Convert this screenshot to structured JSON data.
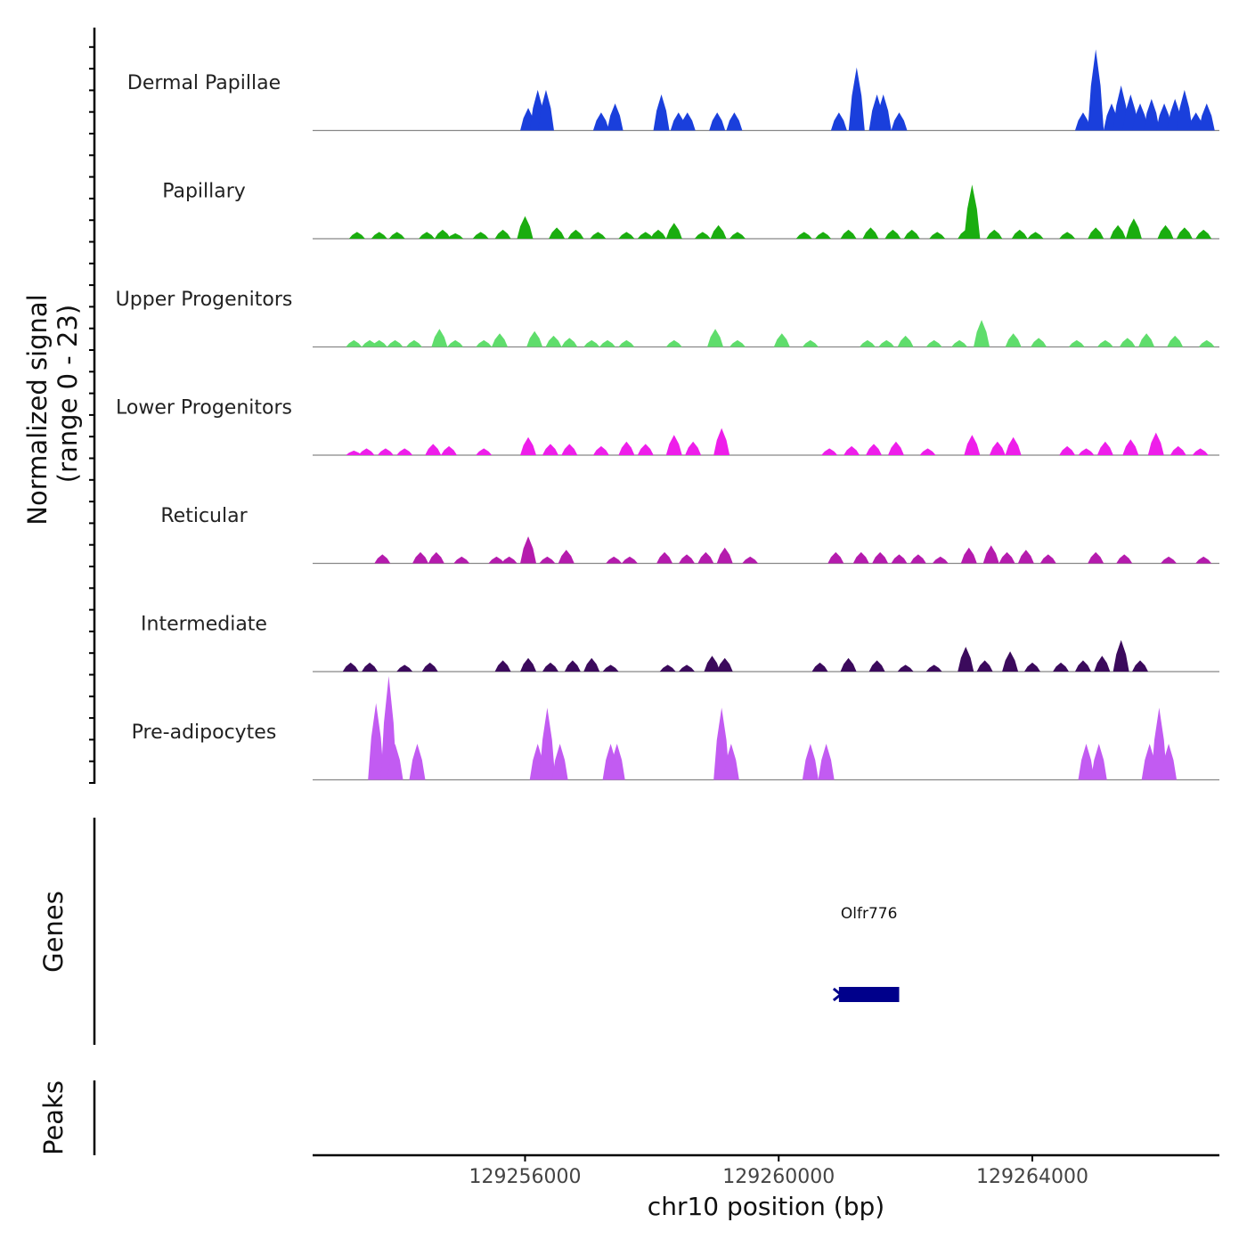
{
  "chart_data": {
    "type": "area",
    "title": "",
    "chromosome": "chr10",
    "xlabel": "chr10 position (bp)",
    "ylabel": "Normalized signal",
    "ylabel_range": "(range 0 - 23)",
    "ylim": [
      0,
      23
    ],
    "xlim": [
      129252650,
      129266950
    ],
    "x_ticks": [
      129256000,
      129260000,
      129264000
    ],
    "x_tick_labels": [
      "129256000",
      "129260000",
      "129264000"
    ],
    "tracks": [
      {
        "name": "Dermal Papillae",
        "color": "#1a3fdc",
        "peaks": [
          [
            129256050,
            5
          ],
          [
            129256200,
            9
          ],
          [
            129256330,
            9
          ],
          [
            129257200,
            4
          ],
          [
            129257420,
            6
          ],
          [
            129258150,
            8
          ],
          [
            129258420,
            4
          ],
          [
            129258560,
            4
          ],
          [
            129259030,
            4
          ],
          [
            129259300,
            4
          ],
          [
            129260950,
            4
          ],
          [
            129261230,
            14
          ],
          [
            129261550,
            8
          ],
          [
            129261650,
            8
          ],
          [
            129261900,
            4
          ],
          [
            129264800,
            4
          ],
          [
            129265000,
            18
          ],
          [
            129265250,
            6
          ],
          [
            129265400,
            10
          ],
          [
            129265550,
            8
          ],
          [
            129265700,
            6
          ],
          [
            129265880,
            7
          ],
          [
            129266080,
            6
          ],
          [
            129266250,
            7
          ],
          [
            129266400,
            9
          ],
          [
            129266580,
            4
          ],
          [
            129266750,
            6
          ]
        ]
      },
      {
        "name": "Papillary",
        "color": "#1aad0f",
        "peaks": [
          [
            129253350,
            1.5
          ],
          [
            129253700,
            1.5
          ],
          [
            129253980,
            1.5
          ],
          [
            129254450,
            1.5
          ],
          [
            129254700,
            2
          ],
          [
            129254900,
            1.2
          ],
          [
            129255300,
            1.5
          ],
          [
            129255650,
            2
          ],
          [
            129256000,
            5
          ],
          [
            129256500,
            2.5
          ],
          [
            129256800,
            2
          ],
          [
            129257150,
            1.5
          ],
          [
            129257600,
            1.5
          ],
          [
            129257900,
            1.5
          ],
          [
            129258100,
            2
          ],
          [
            129258350,
            3.5
          ],
          [
            129258800,
            1.5
          ],
          [
            129259050,
            3
          ],
          [
            129259350,
            1.5
          ],
          [
            129260400,
            1.5
          ],
          [
            129260700,
            1.5
          ],
          [
            129261100,
            2
          ],
          [
            129261450,
            2.5
          ],
          [
            129261800,
            2
          ],
          [
            129262100,
            2
          ],
          [
            129262500,
            1.5
          ],
          [
            129262950,
            2
          ],
          [
            129263050,
            12
          ],
          [
            129263400,
            2
          ],
          [
            129263800,
            2
          ],
          [
            129264050,
            1.5
          ],
          [
            129264550,
            1.5
          ],
          [
            129265000,
            2.5
          ],
          [
            129265350,
            3
          ],
          [
            129265600,
            4.5
          ],
          [
            129266100,
            3
          ],
          [
            129266400,
            2.5
          ],
          [
            129266700,
            2
          ]
        ]
      },
      {
        "name": "Upper Progenitors",
        "color": "#5fdd6c",
        "peaks": [
          [
            129253300,
            1.5
          ],
          [
            129253550,
            1.5
          ],
          [
            129253700,
            1.5
          ],
          [
            129253950,
            1.5
          ],
          [
            129254250,
            1.5
          ],
          [
            129254650,
            4
          ],
          [
            129254900,
            1.5
          ],
          [
            129255350,
            1.5
          ],
          [
            129255600,
            3
          ],
          [
            129256150,
            3.5
          ],
          [
            129256450,
            2.5
          ],
          [
            129256700,
            2
          ],
          [
            129257050,
            1.5
          ],
          [
            129257300,
            1.5
          ],
          [
            129257600,
            1.5
          ],
          [
            129258350,
            1.5
          ],
          [
            129259000,
            4
          ],
          [
            129259350,
            1.5
          ],
          [
            129260050,
            3
          ],
          [
            129260500,
            1.5
          ],
          [
            129261400,
            1.5
          ],
          [
            129261700,
            1.5
          ],
          [
            129262000,
            2.5
          ],
          [
            129262450,
            1.5
          ],
          [
            129262850,
            1.5
          ],
          [
            129263200,
            6
          ],
          [
            129263700,
            3
          ],
          [
            129264100,
            2
          ],
          [
            129264700,
            1.5
          ],
          [
            129265150,
            1.5
          ],
          [
            129265500,
            2
          ],
          [
            129265800,
            3
          ],
          [
            129266250,
            2.5
          ],
          [
            129266750,
            1.5
          ]
        ]
      },
      {
        "name": "Lower Progenitors",
        "color": "#ee1eea",
        "peaks": [
          [
            129253300,
            1
          ],
          [
            129253500,
            1.5
          ],
          [
            129253800,
            1.5
          ],
          [
            129254100,
            1.5
          ],
          [
            129254550,
            2.5
          ],
          [
            129254800,
            2
          ],
          [
            129255350,
            1.5
          ],
          [
            129256050,
            4
          ],
          [
            129256400,
            2.5
          ],
          [
            129256700,
            2.5
          ],
          [
            129257200,
            2
          ],
          [
            129257600,
            3
          ],
          [
            129257900,
            2.5
          ],
          [
            129258350,
            4.5
          ],
          [
            129258650,
            3
          ],
          [
            129259100,
            6
          ],
          [
            129260800,
            1.5
          ],
          [
            129261150,
            2
          ],
          [
            129261500,
            2.5
          ],
          [
            129261850,
            3
          ],
          [
            129262350,
            1.5
          ],
          [
            129263050,
            4.5
          ],
          [
            129263450,
            3
          ],
          [
            129263700,
            4
          ],
          [
            129264550,
            2
          ],
          [
            129264850,
            1.5
          ],
          [
            129265150,
            3
          ],
          [
            129265550,
            3.5
          ],
          [
            129265950,
            5
          ],
          [
            129266300,
            2
          ],
          [
            129266650,
            1.5
          ]
        ]
      },
      {
        "name": "Reticular",
        "color": "#b51bad",
        "peaks": [
          [
            129253750,
            2
          ],
          [
            129254350,
            2.5
          ],
          [
            129254600,
            2.5
          ],
          [
            129255000,
            1.5
          ],
          [
            129255550,
            1.5
          ],
          [
            129255750,
            1.5
          ],
          [
            129256050,
            6
          ],
          [
            129256350,
            1.5
          ],
          [
            129256650,
            3
          ],
          [
            129257400,
            1.5
          ],
          [
            129257650,
            1.5
          ],
          [
            129258200,
            2.5
          ],
          [
            129258550,
            2
          ],
          [
            129258850,
            2.5
          ],
          [
            129259150,
            3.5
          ],
          [
            129259550,
            1.5
          ],
          [
            129260900,
            2.5
          ],
          [
            129261300,
            2.5
          ],
          [
            129261600,
            2.5
          ],
          [
            129261900,
            2
          ],
          [
            129262200,
            2
          ],
          [
            129262550,
            1.5
          ],
          [
            129263000,
            3.5
          ],
          [
            129263350,
            4
          ],
          [
            129263600,
            2.5
          ],
          [
            129263900,
            3
          ],
          [
            129264250,
            2
          ],
          [
            129265000,
            2.5
          ],
          [
            129265450,
            2
          ],
          [
            129266150,
            1.5
          ],
          [
            129266700,
            1.5
          ]
        ]
      },
      {
        "name": "Intermediate",
        "color": "#3b0a5c",
        "peaks": [
          [
            129253250,
            2
          ],
          [
            129253550,
            2
          ],
          [
            129254100,
            1.5
          ],
          [
            129254500,
            2
          ],
          [
            129255650,
            2.5
          ],
          [
            129256050,
            3
          ],
          [
            129256400,
            2
          ],
          [
            129256750,
            2.5
          ],
          [
            129257050,
            3
          ],
          [
            129257350,
            1.5
          ],
          [
            129258250,
            1.5
          ],
          [
            129258550,
            1.5
          ],
          [
            129258950,
            3.5
          ],
          [
            129259150,
            3
          ],
          [
            129260650,
            2
          ],
          [
            129261100,
            3
          ],
          [
            129261550,
            2.5
          ],
          [
            129262000,
            1.5
          ],
          [
            129262450,
            1.5
          ],
          [
            129262950,
            5.5
          ],
          [
            129263250,
            2.5
          ],
          [
            129263650,
            4.5
          ],
          [
            129264000,
            2
          ],
          [
            129264450,
            2
          ],
          [
            129264800,
            2.5
          ],
          [
            129265100,
            3.5
          ],
          [
            129265400,
            7
          ],
          [
            129265700,
            2.5
          ]
        ]
      },
      {
        "name": "Pre-adipocytes",
        "color": "#c25bf2",
        "peaks": [
          [
            129253650,
            17
          ],
          [
            129253850,
            23
          ],
          [
            129253950,
            8
          ],
          [
            129254300,
            8
          ],
          [
            129256200,
            8
          ],
          [
            129256350,
            16
          ],
          [
            129256550,
            8
          ],
          [
            129257350,
            8
          ],
          [
            129257450,
            8
          ],
          [
            129259100,
            16
          ],
          [
            129259250,
            8
          ],
          [
            129260500,
            8
          ],
          [
            129260750,
            8
          ],
          [
            129264850,
            8
          ],
          [
            129265050,
            8
          ],
          [
            129265850,
            8
          ],
          [
            129266000,
            16
          ],
          [
            129266150,
            8
          ]
        ]
      }
    ],
    "genes": [
      {
        "name": "Olfr776",
        "start": 129260950,
        "end": 129261900,
        "strand": "-",
        "color": "#00008b"
      }
    ],
    "peaks_track_label": "Peaks",
    "genes_track_label": "Genes"
  }
}
